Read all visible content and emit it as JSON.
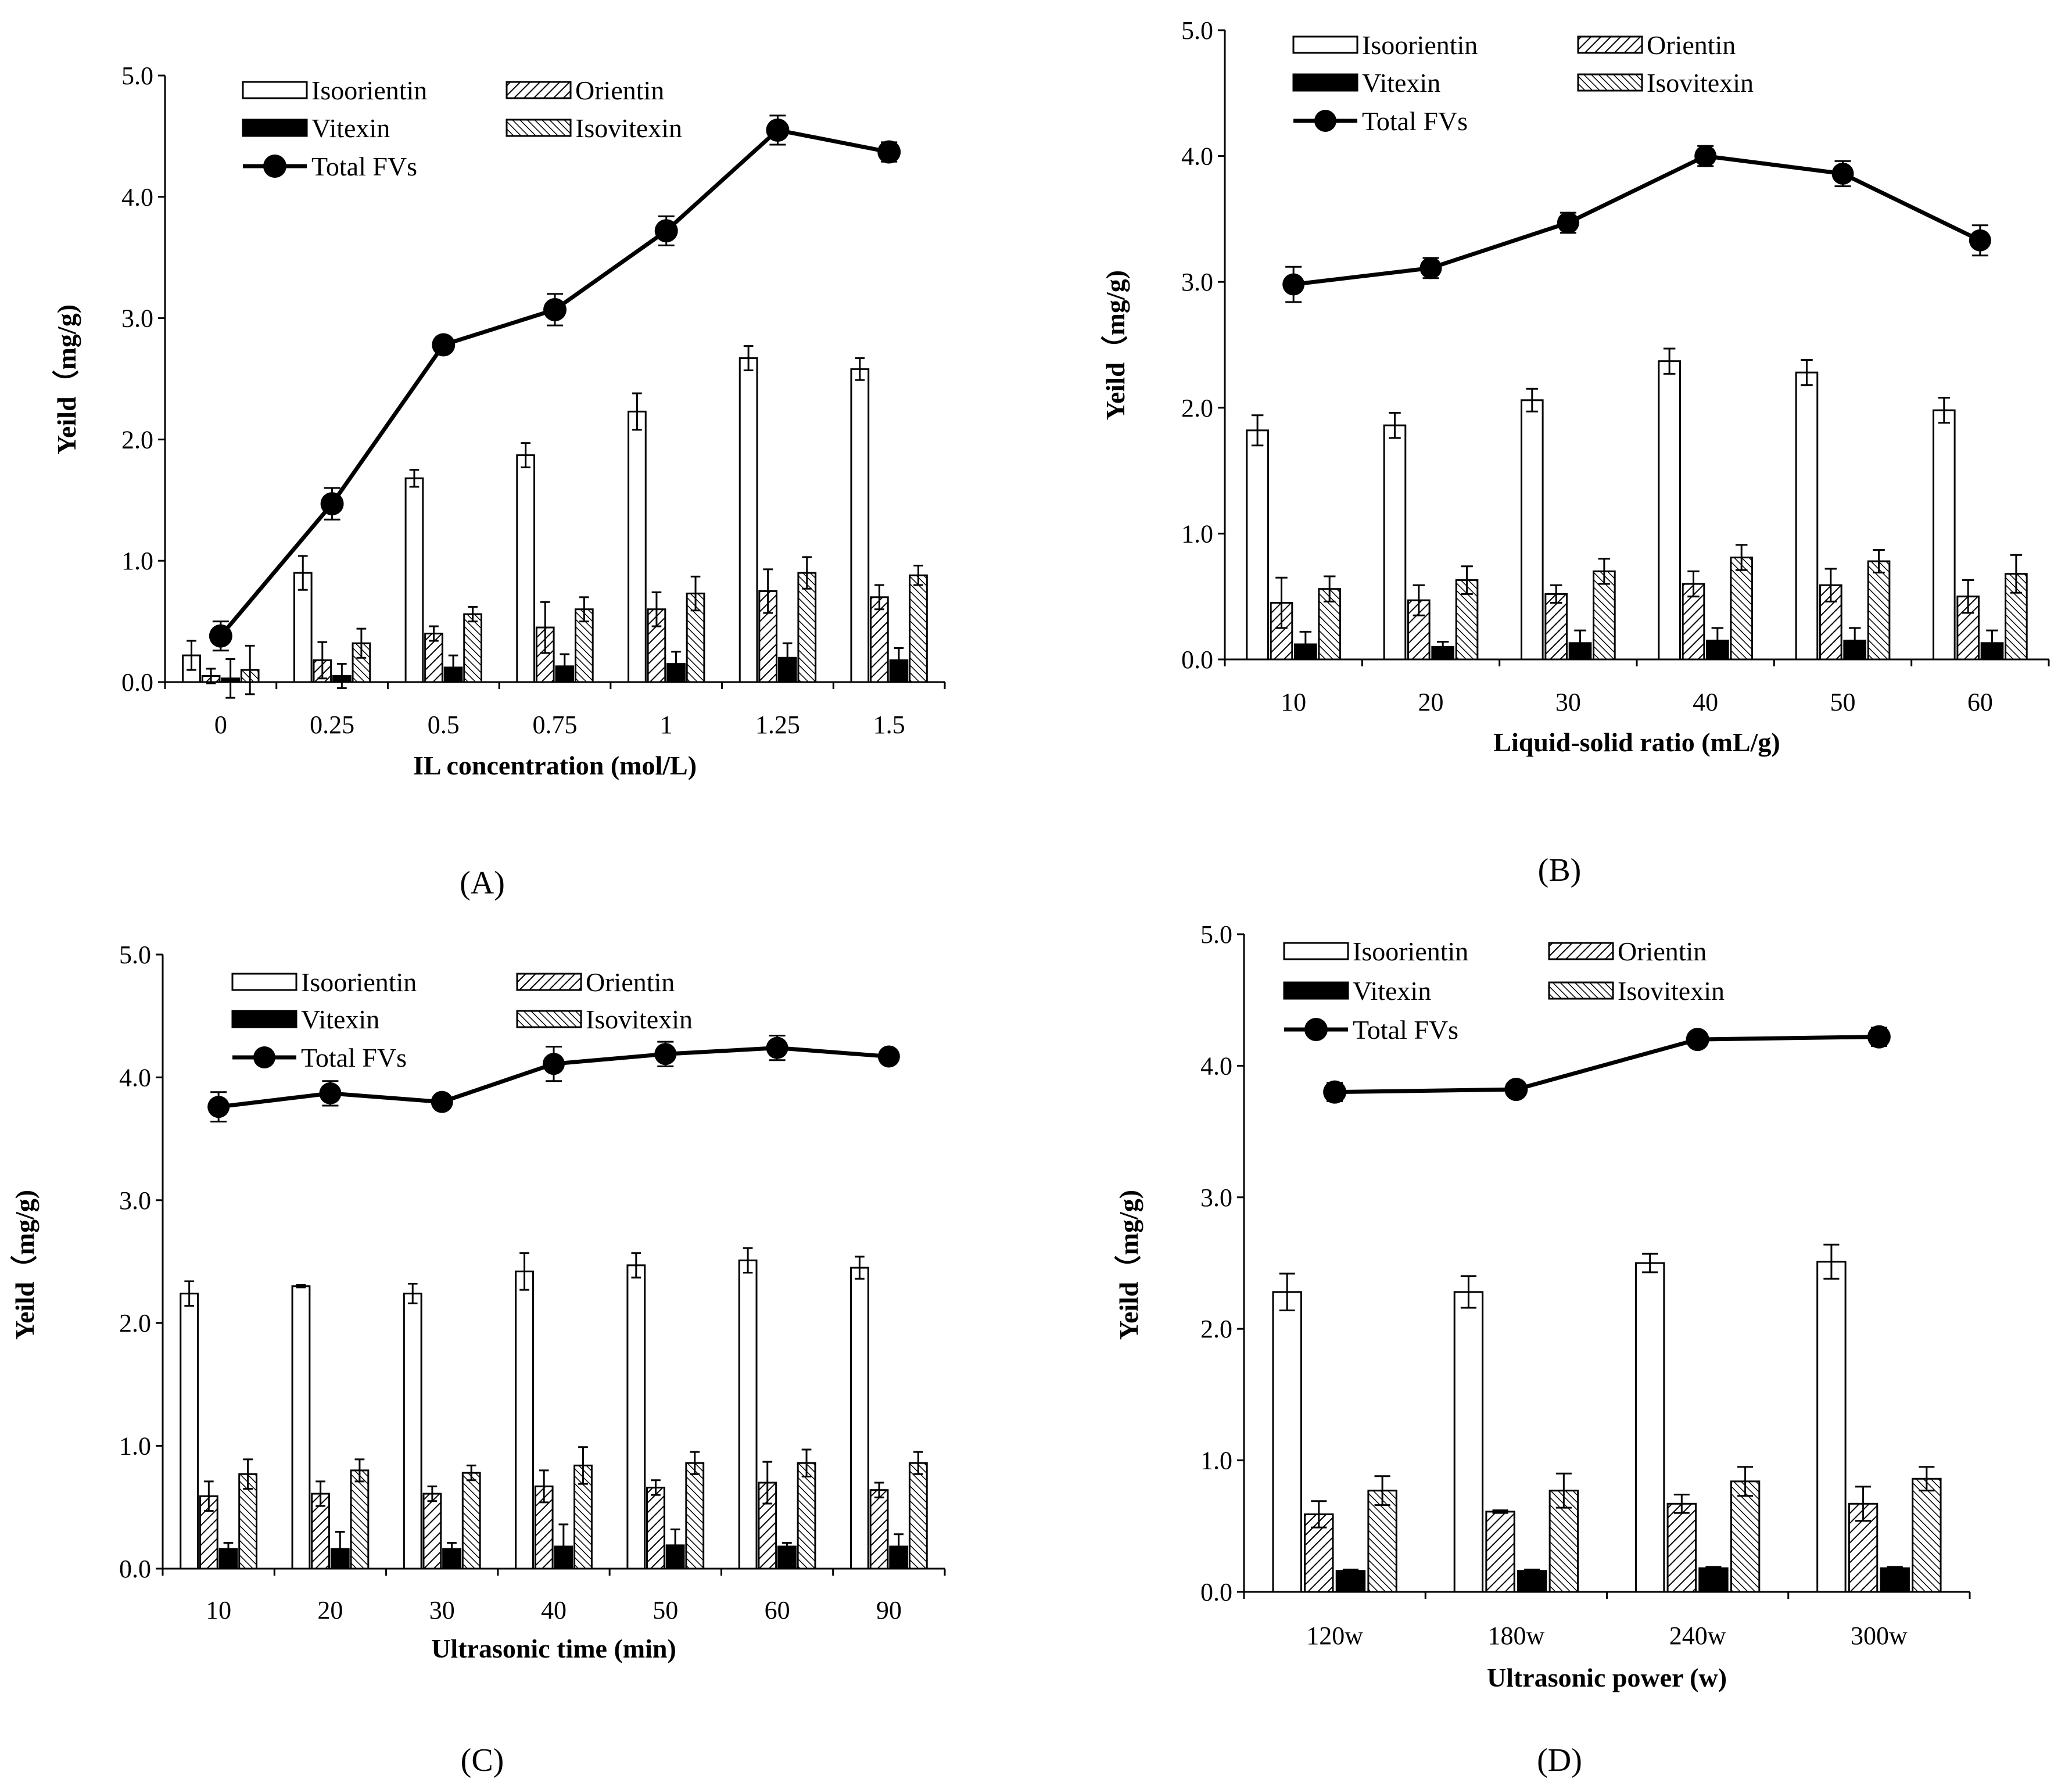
{
  "colors": {
    "ink": "#000000",
    "paper": "#ffffff"
  },
  "series_names": [
    "Isoorientin",
    "Orientin",
    "Vitexin",
    "Isovitexin",
    "Total FVs"
  ],
  "chart_data": [
    {
      "panel": "(A)",
      "type": "bar",
      "xlabel": "IL concentration (mol/L)",
      "ylabel": "Yeild（mg/g)",
      "ylim": [
        0,
        5.0
      ],
      "yticks": [
        "0.0",
        "1.0",
        "2.0",
        "3.0",
        "4.0",
        "5.0"
      ],
      "categories": [
        "0",
        "0.25",
        "0.5",
        "0.75",
        "1",
        "1.25",
        "1.5"
      ],
      "legend_labels": [
        "Isoorientin",
        "Orientin",
        "Vitexin",
        "Isovitexin",
        "Total FVs"
      ],
      "series": [
        {
          "name": "Isoorientin",
          "values": [
            0.22,
            0.9,
            1.68,
            1.87,
            2.23,
            2.67,
            2.58
          ],
          "errors": [
            0.12,
            0.14,
            0.07,
            0.1,
            0.15,
            0.1,
            0.09
          ]
        },
        {
          "name": "Orientin",
          "values": [
            0.05,
            0.18,
            0.4,
            0.45,
            0.6,
            0.75,
            0.7
          ],
          "errors": [
            0.06,
            0.15,
            0.06,
            0.21,
            0.14,
            0.18,
            0.1
          ]
        },
        {
          "name": "Vitexin",
          "values": [
            0.03,
            0.05,
            0.12,
            0.13,
            0.15,
            0.2,
            0.18
          ],
          "errors": [
            0.16,
            0.1,
            0.1,
            0.1,
            0.1,
            0.12,
            0.1
          ]
        },
        {
          "name": "Isovitexin",
          "values": [
            0.1,
            0.32,
            0.56,
            0.6,
            0.73,
            0.9,
            0.88
          ],
          "errors": [
            0.2,
            0.12,
            0.06,
            0.1,
            0.14,
            0.13,
            0.08
          ]
        },
        {
          "name": "Total FVs",
          "kind": "line",
          "values": [
            0.38,
            1.47,
            2.78,
            3.07,
            3.72,
            4.55,
            4.37
          ],
          "errors": [
            0.12,
            0.13,
            0.06,
            0.13,
            0.12,
            0.12,
            0.08
          ]
        }
      ]
    },
    {
      "panel": "(B)",
      "type": "bar",
      "xlabel": "Liquid-solid ratio (mL/g)",
      "ylabel": "Yeild（mg/g)",
      "ylim": [
        0,
        5.0
      ],
      "yticks": [
        "0.0",
        "1.0",
        "2.0",
        "3.0",
        "4.0",
        "5.0"
      ],
      "categories": [
        "10",
        "20",
        "30",
        "40",
        "50",
        "60"
      ],
      "legend_labels": [
        "Isoorientin",
        "Orientin",
        "Vitexin",
        "Isovitexin",
        "Total FVs"
      ],
      "series": [
        {
          "name": "Isoorientin",
          "values": [
            1.82,
            1.86,
            2.06,
            2.37,
            2.28,
            1.98
          ],
          "errors": [
            0.12,
            0.1,
            0.09,
            0.1,
            0.1,
            0.1
          ]
        },
        {
          "name": "Orientin",
          "values": [
            0.45,
            0.47,
            0.52,
            0.6,
            0.59,
            0.5
          ],
          "errors": [
            0.2,
            0.12,
            0.07,
            0.1,
            0.13,
            0.13
          ]
        },
        {
          "name": "Vitexin",
          "values": [
            0.12,
            0.1,
            0.13,
            0.15,
            0.15,
            0.13
          ],
          "errors": [
            0.1,
            0.04,
            0.1,
            0.1,
            0.1,
            0.1
          ]
        },
        {
          "name": "Isovitexin",
          "values": [
            0.56,
            0.63,
            0.7,
            0.81,
            0.78,
            0.68
          ],
          "errors": [
            0.1,
            0.11,
            0.1,
            0.1,
            0.09,
            0.15
          ]
        },
        {
          "name": "Total FVs",
          "kind": "line",
          "values": [
            2.98,
            3.11,
            3.47,
            4.0,
            3.86,
            3.33
          ],
          "errors": [
            0.14,
            0.08,
            0.08,
            0.08,
            0.1,
            0.12
          ]
        }
      ]
    },
    {
      "panel": "(C)",
      "type": "bar",
      "xlabel": "Ultrasonic time (min)",
      "ylabel": "Yeild（mg/g)",
      "ylim": [
        0,
        5.0
      ],
      "yticks": [
        "0.0",
        "1.0",
        "2.0",
        "3.0",
        "4.0",
        "5.0"
      ],
      "categories": [
        "10",
        "20",
        "30",
        "40",
        "50",
        "60",
        "90"
      ],
      "legend_labels": [
        "Isoorientin",
        "Orientin",
        "Vitexin",
        "Isovitexin",
        "Total FVs"
      ],
      "series": [
        {
          "name": "Isoorientin",
          "values": [
            2.24,
            2.3,
            2.24,
            2.42,
            2.47,
            2.51,
            2.45
          ],
          "errors": [
            0.1,
            0.01,
            0.08,
            0.15,
            0.1,
            0.1,
            0.09
          ]
        },
        {
          "name": "Orientin",
          "values": [
            0.59,
            0.61,
            0.61,
            0.67,
            0.66,
            0.7,
            0.64
          ],
          "errors": [
            0.12,
            0.1,
            0.06,
            0.13,
            0.06,
            0.17,
            0.06
          ]
        },
        {
          "name": "Vitexin",
          "values": [
            0.16,
            0.16,
            0.16,
            0.18,
            0.19,
            0.18,
            0.18
          ],
          "errors": [
            0.05,
            0.14,
            0.05,
            0.18,
            0.13,
            0.03,
            0.1
          ]
        },
        {
          "name": "Isovitexin",
          "values": [
            0.77,
            0.8,
            0.78,
            0.84,
            0.86,
            0.86,
            0.86
          ],
          "errors": [
            0.12,
            0.09,
            0.06,
            0.15,
            0.09,
            0.11,
            0.09
          ]
        },
        {
          "name": "Total FVs",
          "kind": "line",
          "values": [
            3.76,
            3.87,
            3.8,
            4.11,
            4.19,
            4.24,
            4.17
          ],
          "errors": [
            0.12,
            0.1,
            0.04,
            0.14,
            0.1,
            0.1,
            0.05
          ]
        }
      ]
    },
    {
      "panel": "(D)",
      "type": "bar",
      "xlabel": "Ultrasonic power (w)",
      "ylabel": "Yeild（mg/g)",
      "ylim": [
        0,
        5.0
      ],
      "yticks": [
        "0.0",
        "1.0",
        "2.0",
        "3.0",
        "4.0",
        "5.0"
      ],
      "categories": [
        "120w",
        "180w",
        "240w",
        "300w"
      ],
      "legend_labels": [
        "Isoorientin",
        "Orientin",
        "Vitexin",
        "Isovitexin",
        "Total FVs"
      ],
      "series": [
        {
          "name": "Isoorientin",
          "values": [
            2.28,
            2.28,
            2.5,
            2.51
          ],
          "errors": [
            0.14,
            0.12,
            0.07,
            0.13
          ]
        },
        {
          "name": "Orientin",
          "values": [
            0.59,
            0.61,
            0.67,
            0.67
          ],
          "errors": [
            0.1,
            0.01,
            0.07,
            0.13
          ]
        },
        {
          "name": "Vitexin",
          "values": [
            0.16,
            0.16,
            0.18,
            0.18
          ],
          "errors": [
            0.01,
            0.01,
            0.01,
            0.01
          ]
        },
        {
          "name": "Isovitexin",
          "values": [
            0.77,
            0.77,
            0.84,
            0.86
          ],
          "errors": [
            0.11,
            0.13,
            0.11,
            0.09
          ]
        },
        {
          "name": "Total FVs",
          "kind": "line",
          "values": [
            3.8,
            3.82,
            4.2,
            4.22
          ],
          "errors": [
            0.07,
            0.04,
            0.03,
            0.07
          ]
        }
      ]
    }
  ]
}
